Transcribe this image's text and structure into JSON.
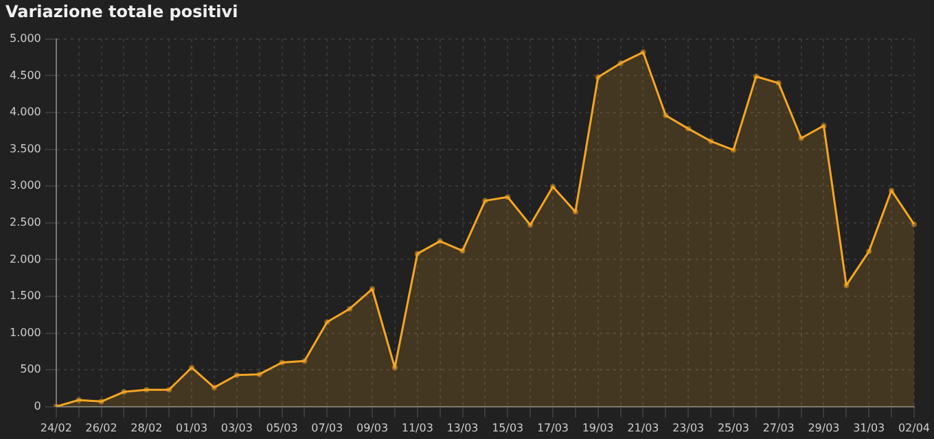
{
  "chart_data": {
    "type": "area",
    "title": "Variazione totale positivi",
    "categories": [
      "24/02",
      null,
      "26/02",
      null,
      "28/02",
      null,
      "01/03",
      null,
      "03/03",
      null,
      "05/03",
      null,
      "07/03",
      null,
      "09/03",
      null,
      "11/03",
      null,
      "13/03",
      null,
      "15/03",
      null,
      "17/03",
      null,
      "19/03",
      null,
      "21/03",
      null,
      "23/03",
      null,
      "25/03",
      null,
      "27/03",
      null,
      "29/03",
      null,
      "31/03",
      null,
      "02/04"
    ],
    "series": [
      {
        "color": "#f5a623",
        "values": [
          0,
          90,
          70,
          200,
          230,
          230,
          530,
          260,
          430,
          440,
          600,
          620,
          1150,
          1330,
          1600,
          530,
          2080,
          2250,
          2120,
          2800,
          2850,
          2470,
          2990,
          2650,
          4480,
          4670,
          4820,
          3960,
          3780,
          3610,
          3490,
          4490,
          4400,
          3650,
          3820,
          1650,
          2110,
          2940,
          2480
        ]
      }
    ],
    "ylim": [
      0,
      5000
    ],
    "yticks": [
      0,
      {
        "value": 500,
        "label": "500"
      },
      {
        "value": 1000,
        "label": "1.000"
      },
      {
        "value": 1500,
        "label": "1.500"
      },
      {
        "value": 2000,
        "label": "2.000"
      },
      {
        "value": 2500,
        "label": "2.500"
      },
      {
        "value": 3000,
        "label": "3.000"
      },
      {
        "value": 3500,
        "label": "3.500"
      },
      {
        "value": 4000,
        "label": "4.000"
      },
      {
        "value": 4500,
        "label": "4.500"
      },
      {
        "value": 5000,
        "label": "5.000"
      }
    ],
    "grid": true,
    "legend": false,
    "marker": "circle",
    "line_style": "solid"
  }
}
